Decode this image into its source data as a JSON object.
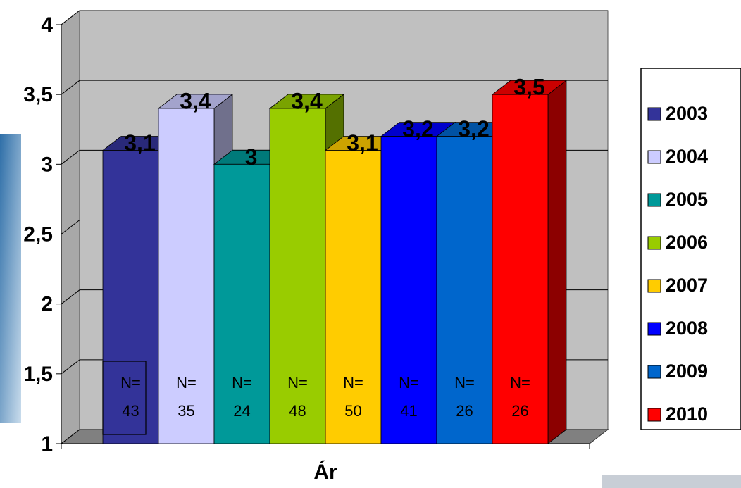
{
  "chart_data": {
    "type": "bar3d",
    "x_label": "Ár",
    "ylim": [
      1,
      4
    ],
    "yticks": [
      1,
      {
        "value": 1.5,
        "label": "1,5"
      },
      2,
      {
        "value": 2.5,
        "label": "2,5"
      },
      3,
      {
        "value": 3.5,
        "label": "3,5"
      },
      4
    ],
    "grid": true,
    "legend": "right",
    "series": [
      {
        "name": "2003",
        "color": "#333399",
        "values": [
          3.1
        ],
        "value_labels": [
          "3,1"
        ],
        "n_prefix": "N=",
        "n": 43
      },
      {
        "name": "2004",
        "color": "#ccccff",
        "values": [
          3.4
        ],
        "value_labels": [
          "3,4"
        ],
        "n_prefix": "N=",
        "n": 35
      },
      {
        "name": "2005",
        "color": "#009999",
        "values": [
          3
        ],
        "n_prefix": "N=",
        "n": 24
      },
      {
        "name": "2006",
        "color": "#99cc00",
        "values": [
          3.4
        ],
        "value_labels": [
          "3,4"
        ],
        "n_prefix": "N=",
        "n": 48
      },
      {
        "name": "2007",
        "color": "#ffcc00",
        "values": [
          3.1
        ],
        "value_labels": [
          "3,1"
        ],
        "n_prefix": "N=",
        "n": 50
      },
      {
        "name": "2008",
        "color": "#0000ff",
        "values": [
          3.2
        ],
        "value_labels": [
          "3,2"
        ],
        "n_prefix": "N=",
        "n": 41
      },
      {
        "name": "2009",
        "color": "#0066cc",
        "values": [
          3.2
        ],
        "value_labels": [
          "3,2"
        ],
        "n_prefix": "N=",
        "n": 26
      },
      {
        "name": "2010",
        "color": "#ff0000",
        "values": [
          3.5
        ],
        "value_labels": [
          "3,5"
        ],
        "n_prefix": "N=",
        "n": 26
      }
    ]
  }
}
